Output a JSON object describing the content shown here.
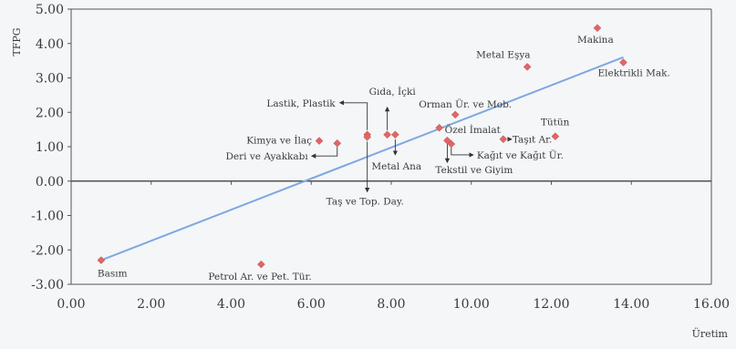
{
  "chart_data": {
    "type": "scatter",
    "title": "",
    "xlabel": "Üretim",
    "ylabel": "TFPG",
    "xlim": [
      0,
      16
    ],
    "ylim": [
      -3,
      5
    ],
    "x_ticks": [
      "0.00",
      "2.00",
      "4.00",
      "6.00",
      "8.00",
      "10.00",
      "12.00",
      "14.00",
      "16.00"
    ],
    "y_ticks": [
      "5.00",
      "4.00",
      "3.00",
      "2.00",
      "1.00",
      "0.00",
      "-1.00",
      "-2.00",
      "-3.00"
    ],
    "grid": false,
    "trendline": {
      "x": [
        0.75,
        13.8
      ],
      "y": [
        -2.3,
        3.6
      ]
    },
    "colors": {
      "point": "#e06666",
      "trend": "#7fa7e0",
      "axis": "#555555",
      "background": "#f4f6f8"
    },
    "points": [
      {
        "label": "Makina",
        "x": 13.15,
        "y": 4.45
      },
      {
        "label": "Metal Eşya",
        "x": 11.4,
        "y": 3.32
      },
      {
        "label": "Elektrikli Mak.",
        "x": 13.8,
        "y": 3.45
      },
      {
        "label": "Orman Ür. ve Mob.",
        "x": 9.6,
        "y": 1.93
      },
      {
        "label": "Özel İmalat",
        "x": 9.2,
        "y": 1.55
      },
      {
        "label": "Tütün",
        "x": 12.1,
        "y": 1.3
      },
      {
        "label": "Taşıt Ar.",
        "x": 10.8,
        "y": 1.22
      },
      {
        "label": "Kağıt ve Kağıt Ür.",
        "x": 9.5,
        "y": 1.08
      },
      {
        "label": "Tekstil ve Giyim",
        "x": 9.4,
        "y": 1.18
      },
      {
        "label": "Gıda, İçki",
        "x": 7.9,
        "y": 1.35
      },
      {
        "label": "Metal Ana",
        "x": 8.1,
        "y": 1.35
      },
      {
        "label": "Lastik, Plastik",
        "x": 7.4,
        "y": 1.35
      },
      {
        "label": "Taş ve Top. Day.",
        "x": 7.4,
        "y": 1.28
      },
      {
        "label": "Kimya ve İlaç",
        "x": 6.2,
        "y": 1.17
      },
      {
        "label": "Deri ve Ayakkabı",
        "x": 6.65,
        "y": 1.1
      },
      {
        "label": "Basım",
        "x": 0.75,
        "y": -2.3
      },
      {
        "label": "Petrol Ar. ve Pet. Tür.",
        "x": 4.75,
        "y": -2.42
      }
    ]
  }
}
